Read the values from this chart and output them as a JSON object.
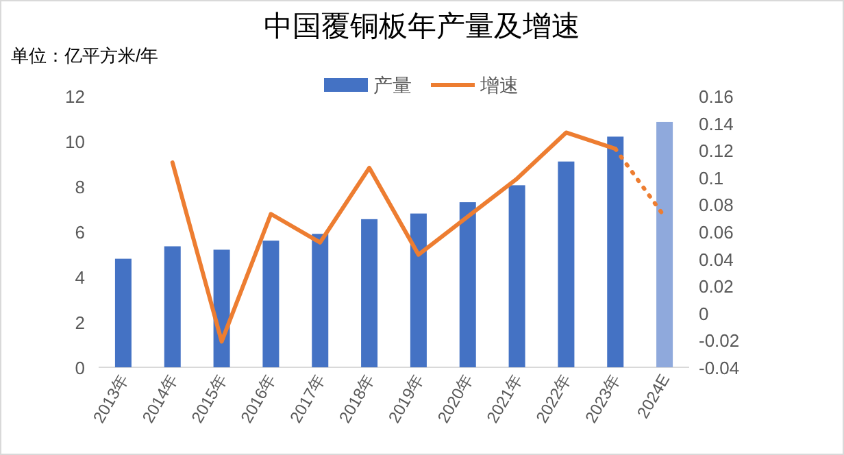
{
  "chart_data": {
    "type": "bar",
    "title": "中国覆铜板年产量及增速",
    "annotations": [
      "单位：亿平方米/年"
    ],
    "categories": [
      "2013年",
      "2014年",
      "2015年",
      "2016年",
      "2017年",
      "2018年",
      "2019年",
      "2020年",
      "2021年",
      "2022年",
      "2023年",
      "2024E"
    ],
    "series": [
      {
        "name": "产量",
        "color": "#4472c4",
        "colors": [
          "#4472c4",
          "#4472c4",
          "#4472c4",
          "#4472c4",
          "#4472c4",
          "#4472c4",
          "#4472c4",
          "#4472c4",
          "#4472c4",
          "#4472c4",
          "#4472c4",
          "#8fa9dc"
        ],
        "values": [
          4.8,
          5.35,
          5.2,
          5.6,
          5.9,
          6.55,
          6.8,
          7.3,
          8.05,
          9.1,
          10.2,
          10.85
        ]
      },
      {
        "name": "增速",
        "type": "line",
        "axis": "y2",
        "color": "#ed7d31",
        "line_style": "solid",
        "values": [
          null,
          0.111,
          -0.021,
          0.073,
          0.052,
          0.107,
          0.043,
          0.071,
          0.099,
          0.133,
          0.121,
          null
        ]
      },
      {
        "type": "line",
        "axis": "y2",
        "color": "#ed7d31",
        "line_style": "dotted",
        "values": [
          null,
          null,
          null,
          null,
          null,
          null,
          null,
          null,
          null,
          null,
          0.121,
          0.071
        ]
      }
    ],
    "ylim": [
      0,
      12
    ],
    "yticks": [
      0,
      2,
      4,
      6,
      8,
      10,
      12
    ],
    "y2lim": [
      -0.04,
      0.16
    ],
    "y2ticks": [
      -0.04,
      -0.02,
      0,
      0.02,
      0.04,
      0.06,
      0.08,
      0.1,
      0.12,
      0.14,
      0.16
    ],
    "grid": false,
    "legend": "top",
    "marker": "none"
  }
}
